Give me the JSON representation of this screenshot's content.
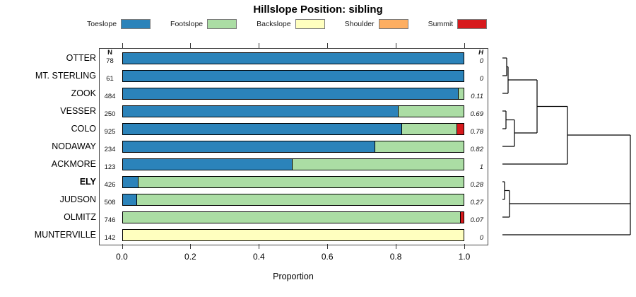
{
  "title": "Hillslope Position: sibling",
  "legend": [
    {
      "label": "Toeslope",
      "color": "#2B83BA"
    },
    {
      "label": "Footslope",
      "color": "#ABDDA4"
    },
    {
      "label": "Backslope",
      "color": "#FFFFBF"
    },
    {
      "label": "Shoulder",
      "color": "#FDAE61"
    },
    {
      "label": "Summit",
      "color": "#D7191C"
    }
  ],
  "x_axis": {
    "label": "Proportion",
    "ticks": [
      "0.0",
      "0.2",
      "0.4",
      "0.6",
      "0.8",
      "1.0"
    ]
  },
  "chart_data": {
    "type": "bar",
    "stacked": true,
    "orientation": "horizontal",
    "xlim": [
      0,
      1
    ],
    "title": "Hillslope Position: sibling",
    "xlabel": "Proportion",
    "categories": [
      "OTTER",
      "MT. STERLING",
      "ZOOK",
      "VESSER",
      "COLO",
      "NODAWAY",
      "ACKMORE",
      "ELY",
      "JUDSON",
      "OLMITZ",
      "MUNTERVILLE"
    ],
    "bold_category": "ELY",
    "series": [
      {
        "name": "Toeslope",
        "values": [
          1,
          1,
          0.985,
          0.81,
          0.82,
          0.74,
          0.5,
          0.05,
          0.045,
          0,
          0
        ]
      },
      {
        "name": "Footslope",
        "values": [
          0,
          0,
          0.015,
          0.19,
          0.16,
          0.26,
          0.5,
          0.95,
          0.955,
          0.99,
          0
        ]
      },
      {
        "name": "Backslope",
        "values": [
          0,
          0,
          0,
          0,
          0,
          0,
          0,
          0,
          0,
          0,
          1
        ]
      },
      {
        "name": "Shoulder",
        "values": [
          0,
          0,
          0,
          0,
          0,
          0,
          0,
          0,
          0,
          0,
          0
        ]
      },
      {
        "name": "Summit",
        "values": [
          0,
          0,
          0,
          0,
          0.02,
          0,
          0,
          0,
          0,
          0.01,
          0
        ]
      }
    ],
    "n_column": {
      "header": "N",
      "values": [
        78,
        61,
        484,
        250,
        925,
        234,
        123,
        426,
        508,
        746,
        142
      ]
    },
    "h_column": {
      "header": "H",
      "values": [
        "0",
        "0",
        "0.11",
        "0.69",
        "0.78",
        "0.82",
        "1",
        "0.28",
        "0.27",
        "0.07",
        "0"
      ]
    }
  },
  "dendrogram": {
    "segments": [
      [
        711,
        82,
        717,
        82
      ],
      [
        711,
        107,
        717,
        107
      ],
      [
        717,
        82,
        717,
        107
      ],
      [
        717,
        94.5,
        719,
        94.5
      ],
      [
        711,
        132,
        719,
        132
      ],
      [
        719,
        94.5,
        719,
        132
      ],
      [
        719,
        113,
        760,
        113
      ],
      [
        711,
        157,
        716,
        157
      ],
      [
        711,
        182,
        716,
        182
      ],
      [
        716,
        157,
        716,
        182
      ],
      [
        716,
        169.5,
        728,
        169.5
      ],
      [
        711,
        207,
        728,
        207
      ],
      [
        728,
        169.5,
        728,
        207
      ],
      [
        728,
        188,
        760,
        188
      ],
      [
        760,
        113,
        760,
        188
      ],
      [
        760,
        150.5,
        803,
        150.5
      ],
      [
        711,
        232,
        803,
        232
      ],
      [
        803,
        150.5,
        803,
        232
      ],
      [
        803,
        191,
        892,
        191
      ],
      [
        711,
        257,
        714,
        257
      ],
      [
        711,
        282,
        714,
        282
      ],
      [
        714,
        257,
        714,
        282
      ],
      [
        714,
        269.5,
        721,
        269.5
      ],
      [
        711,
        307,
        721,
        307
      ],
      [
        721,
        269.5,
        721,
        307
      ],
      [
        721,
        288,
        892,
        288
      ],
      [
        711,
        332,
        892,
        332
      ],
      [
        892,
        191,
        892,
        332
      ]
    ]
  }
}
